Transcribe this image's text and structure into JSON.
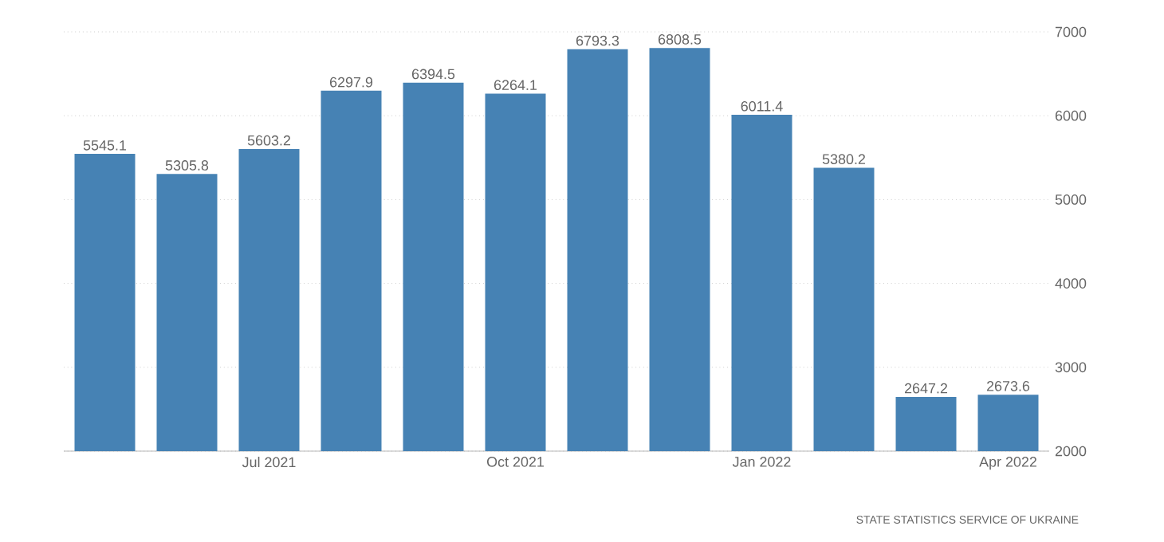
{
  "chart_data": {
    "type": "bar",
    "categories": [
      null,
      null,
      "Jul 2021",
      null,
      null,
      "Oct 2021",
      null,
      null,
      "Jan 2022",
      null,
      null,
      "Apr 2022"
    ],
    "values": [
      5545.1,
      5305.8,
      5603.2,
      6297.9,
      6394.5,
      6264.1,
      6793.3,
      6808.5,
      6011.4,
      5380.2,
      2647.2,
      2673.6
    ],
    "color": "#4682b4",
    "ylim": [
      2000,
      7000
    ],
    "yticks": [
      2000,
      3000,
      4000,
      5000,
      6000,
      7000
    ],
    "grid": "y",
    "data_labels": true,
    "annotations": [
      "STATE STATISTICS SERVICE OF UKRAINE"
    ]
  }
}
